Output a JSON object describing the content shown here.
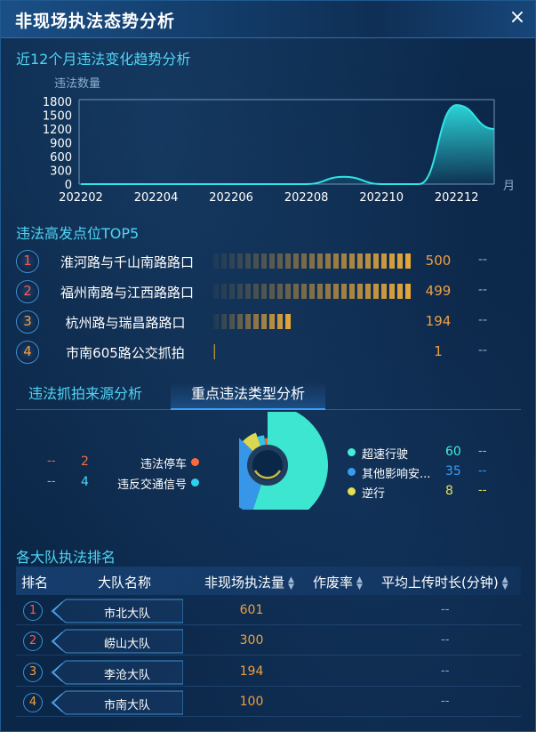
{
  "header": {
    "title": "非现场执法态势分析",
    "close_icon": "close-icon",
    "close_glyph": "×"
  },
  "trend": {
    "title": "近12个月违法变化趋势分析",
    "chart_data": {
      "type": "area",
      "ylabel": "违法数量",
      "xunit": "月",
      "yticks": [
        0,
        300,
        600,
        900,
        1200,
        1500,
        1800
      ],
      "ylim": [
        0,
        1800
      ],
      "xticks": [
        "202202",
        "202204",
        "202206",
        "202208",
        "202210",
        "202212"
      ],
      "x": [
        "202202",
        "202203",
        "202204",
        "202205",
        "202206",
        "202207",
        "202208",
        "202209",
        "202210",
        "202211",
        "202212",
        "202301"
      ],
      "values": [
        0,
        0,
        0,
        0,
        0,
        0,
        0,
        160,
        0,
        0,
        1720,
        1200
      ],
      "color": "#2ee6e6"
    }
  },
  "top5": {
    "title": "违法高发点位TOP5",
    "items": [
      {
        "rank": "1",
        "name": "淮河路与千山南路路口",
        "value": "500",
        "bar": 1.0,
        "extra": "--"
      },
      {
        "rank": "2",
        "name": "福州南路与江西路路口",
        "value": "499",
        "bar": 0.998,
        "extra": "--"
      },
      {
        "rank": "3",
        "name": "杭州路与瑞昌路路口",
        "value": "194",
        "bar": 0.388,
        "extra": "--"
      },
      {
        "rank": "4",
        "name": "市南605路公交抓拍",
        "value": "1",
        "bar": 0.004,
        "extra": "--"
      }
    ]
  },
  "tabs": {
    "source": "违法抓拍来源分析",
    "type": "重点违法类型分析"
  },
  "types": {
    "chart_data": {
      "type": "pie",
      "left": [
        {
          "name": "违法停车",
          "value": "2",
          "extra": "--",
          "color": "#ff6a3a"
        },
        {
          "name": "违反交通信号",
          "value": "4",
          "extra": "--",
          "color": "#2ed0f0"
        }
      ],
      "right": [
        {
          "name": "超速行驶",
          "value": "60",
          "extra": "--",
          "color": "#3ff0d8"
        },
        {
          "name": "其他影响安...",
          "value": "35",
          "extra": "--",
          "color": "#3a9cf0"
        },
        {
          "name": "逆行",
          "value": "8",
          "extra": "--",
          "color": "#e8e050"
        }
      ],
      "slices": [
        60,
        35,
        8,
        4,
        2
      ]
    }
  },
  "ranking": {
    "title": "各大队执法排名",
    "columns": [
      "排名",
      "大队名称",
      "非现场执法量",
      "作废率",
      "平均上传时长(分钟)"
    ],
    "rows": [
      {
        "rank": "1",
        "name": "市北大队",
        "value": "601",
        "avg": "--"
      },
      {
        "rank": "2",
        "name": "崂山大队",
        "value": "300",
        "avg": "--"
      },
      {
        "rank": "3",
        "name": "李沧大队",
        "value": "194",
        "avg": "--"
      },
      {
        "rank": "4",
        "name": "市南大队",
        "value": "100",
        "avg": "--"
      }
    ]
  }
}
